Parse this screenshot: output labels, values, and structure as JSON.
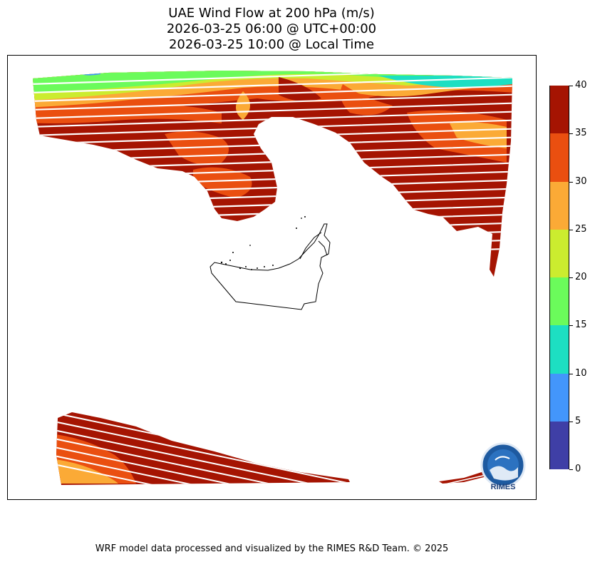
{
  "title": {
    "line1": "UAE Wind Flow at 200 hPa (m/s)",
    "line2": "2026-03-25 06:00 @ UTC+00:00",
    "line3": "2026-03-25 10:00 @ Local Time"
  },
  "colorbar": {
    "min": 0,
    "max": 40,
    "tick_labels": [
      "0",
      "5",
      "10",
      "15",
      "20",
      "25",
      "30",
      "35",
      "40"
    ],
    "bins": [
      {
        "from": 0,
        "to": 5,
        "color": "#3f3fa6"
      },
      {
        "from": 5,
        "to": 10,
        "color": "#4396fb"
      },
      {
        "from": 10,
        "to": 15,
        "color": "#1ddfc2"
      },
      {
        "from": 15,
        "to": 20,
        "color": "#6bfb5b"
      },
      {
        "from": 20,
        "to": 25,
        "color": "#cbec2f"
      },
      {
        "from": 25,
        "to": 30,
        "color": "#fbaa36"
      },
      {
        "from": 30,
        "to": 35,
        "color": "#ea4f10"
      },
      {
        "from": 35,
        "to": 40,
        "color": "#a51402"
      }
    ]
  },
  "wind_arrow_color": "#ffffff",
  "logo": {
    "text": "RIMES"
  },
  "footer": "WRF model data processed and visualized by the RIMES R&D Team. © 2025"
}
